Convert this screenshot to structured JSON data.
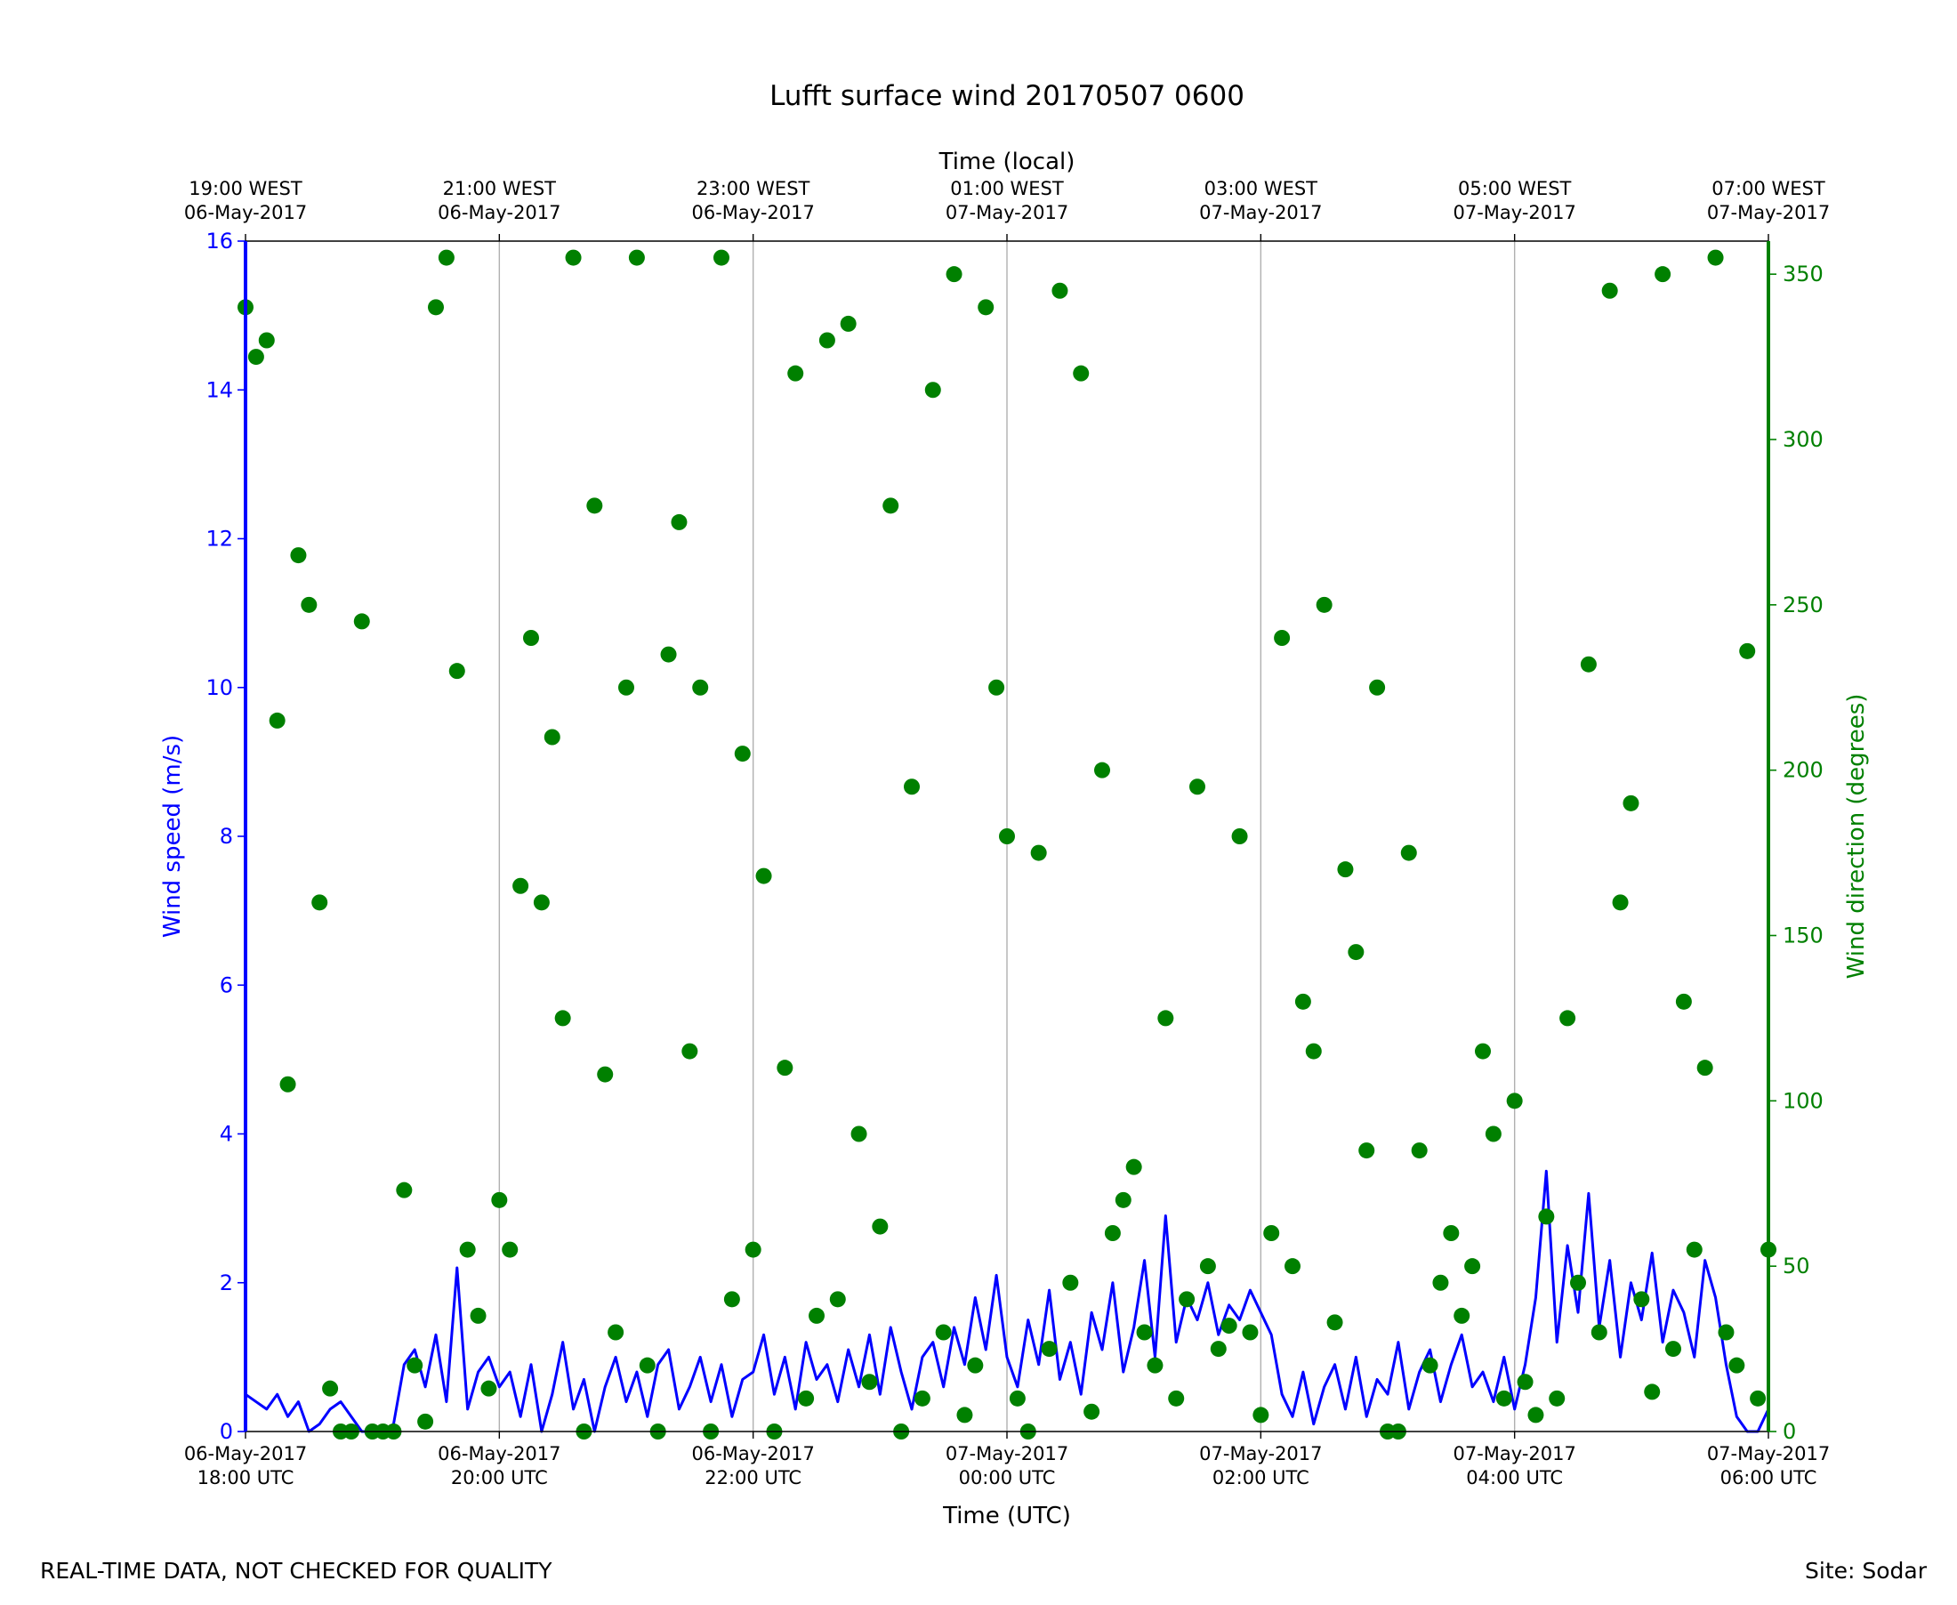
{
  "chart_data": {
    "type": "line",
    "title": "Lufft surface wind 20170507 0600",
    "xlabel": "Time (UTC)",
    "x2label": "Time (local)",
    "ylabel": "Wind speed (m/s)",
    "y2label": "Wind direction (degrees)",
    "footer_left": "REAL-TIME DATA, NOT CHECKED FOR QUALITY",
    "footer_right": "Site: Sodar",
    "grid": true,
    "xlim": [
      "2017-05-06T18:00Z",
      "2017-05-07T06:00Z"
    ],
    "xticks": [
      {
        "value": "2017-05-06T18:00Z",
        "label": [
          "06-May-2017",
          "18:00 UTC"
        ]
      },
      {
        "value": "2017-05-06T20:00Z",
        "label": [
          "06-May-2017",
          "20:00 UTC"
        ]
      },
      {
        "value": "2017-05-06T22:00Z",
        "label": [
          "06-May-2017",
          "22:00 UTC"
        ]
      },
      {
        "value": "2017-05-07T00:00Z",
        "label": [
          "07-May-2017",
          "00:00 UTC"
        ]
      },
      {
        "value": "2017-05-07T02:00Z",
        "label": [
          "07-May-2017",
          "02:00 UTC"
        ]
      },
      {
        "value": "2017-05-07T04:00Z",
        "label": [
          "07-May-2017",
          "04:00 UTC"
        ]
      },
      {
        "value": "2017-05-07T06:00Z",
        "label": [
          "07-May-2017",
          "06:00 UTC"
        ]
      }
    ],
    "x2ticks": [
      {
        "value": "2017-05-06T18:00Z",
        "label": [
          "19:00 WEST",
          "06-May-2017"
        ]
      },
      {
        "value": "2017-05-06T20:00Z",
        "label": [
          "21:00 WEST",
          "06-May-2017"
        ]
      },
      {
        "value": "2017-05-06T22:00Z",
        "label": [
          "23:00 WEST",
          "06-May-2017"
        ]
      },
      {
        "value": "2017-05-07T00:00Z",
        "label": [
          "01:00 WEST",
          "07-May-2017"
        ]
      },
      {
        "value": "2017-05-07T02:00Z",
        "label": [
          "03:00 WEST",
          "07-May-2017"
        ]
      },
      {
        "value": "2017-05-07T04:00Z",
        "label": [
          "05:00 WEST",
          "07-May-2017"
        ]
      },
      {
        "value": "2017-05-07T06:00Z",
        "label": [
          "07:00 WEST",
          "07-May-2017"
        ]
      }
    ],
    "ylim": [
      0,
      16
    ],
    "yticks": [
      0,
      2,
      4,
      6,
      8,
      10,
      12,
      14,
      16
    ],
    "ycolor": "#0000ff",
    "y2lim": [
      0,
      360
    ],
    "y2ticks": [
      0,
      50,
      100,
      150,
      200,
      250,
      300,
      350
    ],
    "y2color": "#008000",
    "x": [
      "2017-05-06T18:00Z",
      "2017-05-06T18:05Z",
      "2017-05-06T18:10Z",
      "2017-05-06T18:15Z",
      "2017-05-06T18:20Z",
      "2017-05-06T18:25Z",
      "2017-05-06T18:30Z",
      "2017-05-06T18:35Z",
      "2017-05-06T18:40Z",
      "2017-05-06T18:45Z",
      "2017-05-06T18:50Z",
      "2017-05-06T18:55Z",
      "2017-05-06T19:00Z",
      "2017-05-06T19:05Z",
      "2017-05-06T19:10Z",
      "2017-05-06T19:15Z",
      "2017-05-06T19:20Z",
      "2017-05-06T19:25Z",
      "2017-05-06T19:30Z",
      "2017-05-06T19:35Z",
      "2017-05-06T19:40Z",
      "2017-05-06T19:45Z",
      "2017-05-06T19:50Z",
      "2017-05-06T19:55Z",
      "2017-05-06T20:00Z",
      "2017-05-06T20:05Z",
      "2017-05-06T20:10Z",
      "2017-05-06T20:15Z",
      "2017-05-06T20:20Z",
      "2017-05-06T20:25Z",
      "2017-05-06T20:30Z",
      "2017-05-06T20:35Z",
      "2017-05-06T20:40Z",
      "2017-05-06T20:45Z",
      "2017-05-06T20:50Z",
      "2017-05-06T20:55Z",
      "2017-05-06T21:00Z",
      "2017-05-06T21:05Z",
      "2017-05-06T21:10Z",
      "2017-05-06T21:15Z",
      "2017-05-06T21:20Z",
      "2017-05-06T21:25Z",
      "2017-05-06T21:30Z",
      "2017-05-06T21:35Z",
      "2017-05-06T21:40Z",
      "2017-05-06T21:45Z",
      "2017-05-06T21:50Z",
      "2017-05-06T21:55Z",
      "2017-05-06T22:00Z",
      "2017-05-06T22:05Z",
      "2017-05-06T22:10Z",
      "2017-05-06T22:15Z",
      "2017-05-06T22:20Z",
      "2017-05-06T22:25Z",
      "2017-05-06T22:30Z",
      "2017-05-06T22:35Z",
      "2017-05-06T22:40Z",
      "2017-05-06T22:45Z",
      "2017-05-06T22:50Z",
      "2017-05-06T22:55Z",
      "2017-05-06T23:00Z",
      "2017-05-06T23:05Z",
      "2017-05-06T23:10Z",
      "2017-05-06T23:15Z",
      "2017-05-06T23:20Z",
      "2017-05-06T23:25Z",
      "2017-05-06T23:30Z",
      "2017-05-06T23:35Z",
      "2017-05-06T23:40Z",
      "2017-05-06T23:45Z",
      "2017-05-06T23:50Z",
      "2017-05-06T23:55Z",
      "2017-05-07T00:00Z",
      "2017-05-07T00:05Z",
      "2017-05-07T00:10Z",
      "2017-05-07T00:15Z",
      "2017-05-07T00:20Z",
      "2017-05-07T00:25Z",
      "2017-05-07T00:30Z",
      "2017-05-07T00:35Z",
      "2017-05-07T00:40Z",
      "2017-05-07T00:45Z",
      "2017-05-07T00:50Z",
      "2017-05-07T00:55Z",
      "2017-05-07T01:00Z",
      "2017-05-07T01:05Z",
      "2017-05-07T01:10Z",
      "2017-05-07T01:15Z",
      "2017-05-07T01:20Z",
      "2017-05-07T01:25Z",
      "2017-05-07T01:30Z",
      "2017-05-07T01:35Z",
      "2017-05-07T01:40Z",
      "2017-05-07T01:45Z",
      "2017-05-07T01:50Z",
      "2017-05-07T01:55Z",
      "2017-05-07T02:00Z",
      "2017-05-07T02:05Z",
      "2017-05-07T02:10Z",
      "2017-05-07T02:15Z",
      "2017-05-07T02:20Z",
      "2017-05-07T02:25Z",
      "2017-05-07T02:30Z",
      "2017-05-07T02:35Z",
      "2017-05-07T02:40Z",
      "2017-05-07T02:45Z",
      "2017-05-07T02:50Z",
      "2017-05-07T02:55Z",
      "2017-05-07T03:00Z",
      "2017-05-07T03:05Z",
      "2017-05-07T03:10Z",
      "2017-05-07T03:15Z",
      "2017-05-07T03:20Z",
      "2017-05-07T03:25Z",
      "2017-05-07T03:30Z",
      "2017-05-07T03:35Z",
      "2017-05-07T03:40Z",
      "2017-05-07T03:45Z",
      "2017-05-07T03:50Z",
      "2017-05-07T03:55Z",
      "2017-05-07T04:00Z",
      "2017-05-07T04:05Z",
      "2017-05-07T04:10Z",
      "2017-05-07T04:15Z",
      "2017-05-07T04:20Z",
      "2017-05-07T04:25Z",
      "2017-05-07T04:30Z",
      "2017-05-07T04:35Z",
      "2017-05-07T04:40Z",
      "2017-05-07T04:45Z",
      "2017-05-07T04:50Z",
      "2017-05-07T04:55Z",
      "2017-05-07T05:00Z",
      "2017-05-07T05:05Z",
      "2017-05-07T05:10Z",
      "2017-05-07T05:15Z",
      "2017-05-07T05:20Z",
      "2017-05-07T05:25Z",
      "2017-05-07T05:30Z",
      "2017-05-07T05:35Z",
      "2017-05-07T05:40Z",
      "2017-05-07T05:45Z",
      "2017-05-07T05:50Z",
      "2017-05-07T05:55Z",
      "2017-05-07T06:00Z"
    ],
    "series": [
      {
        "type": "line",
        "axis": "y",
        "color": "#0000ff",
        "values": [
          0.5,
          0.4,
          0.3,
          0.5,
          0.2,
          0.4,
          0,
          0.1,
          0.3,
          0.4,
          0.2,
          0,
          0,
          0,
          0.1,
          0.9,
          1.1,
          0.6,
          1.3,
          0.4,
          2.2,
          0.3,
          0.8,
          1.0,
          0.6,
          0.8,
          0.2,
          0.9,
          0,
          0.5,
          1.2,
          0.3,
          0.7,
          0,
          0.6,
          1.0,
          0.4,
          0.8,
          0.2,
          0.9,
          1.1,
          0.3,
          0.6,
          1.0,
          0.4,
          0.9,
          0.2,
          0.7,
          0.8,
          1.3,
          0.5,
          1.0,
          0.3,
          1.2,
          0.7,
          0.9,
          0.4,
          1.1,
          0.6,
          1.3,
          0.5,
          1.4,
          0.8,
          0.3,
          1.0,
          1.2,
          0.6,
          1.4,
          0.9,
          1.8,
          1.1,
          2.1,
          1.0,
          0.6,
          1.5,
          0.9,
          1.9,
          0.7,
          1.2,
          0.5,
          1.6,
          1.1,
          2.0,
          0.8,
          1.4,
          2.3,
          1.0,
          2.9,
          1.2,
          1.8,
          1.5,
          2.0,
          1.3,
          1.7,
          1.5,
          1.9,
          1.6,
          1.3,
          0.5,
          0.2,
          0.8,
          0.1,
          0.6,
          0.9,
          0.3,
          1.0,
          0.2,
          0.7,
          0.5,
          1.2,
          0.3,
          0.8,
          1.1,
          0.4,
          0.9,
          1.3,
          0.6,
          0.8,
          0.4,
          1.0,
          0.3,
          0.9,
          1.8,
          3.5,
          1.2,
          2.5,
          1.6,
          3.2,
          1.4,
          2.3,
          1.0,
          2.0,
          1.5,
          2.4,
          1.2,
          1.9,
          1.6,
          1.0,
          2.3,
          1.8,
          0.9,
          0.2,
          0,
          0,
          0.3
        ]
      },
      {
        "type": "scatter",
        "axis": "y2",
        "color": "#008000",
        "values": [
          340,
          325,
          330,
          215,
          105,
          265,
          250,
          160,
          13,
          0,
          0,
          245,
          0,
          0,
          0,
          73,
          20,
          3,
          340,
          355,
          230,
          55,
          35,
          13,
          70,
          55,
          165,
          240,
          160,
          210,
          125,
          355,
          0,
          280,
          108,
          30,
          225,
          355,
          20,
          0,
          235,
          275,
          115,
          225,
          0,
          355,
          40,
          205,
          55,
          168,
          0,
          110,
          320,
          10,
          35,
          330,
          40,
          335,
          90,
          15,
          62,
          280,
          0,
          195,
          10,
          315,
          30,
          350,
          5,
          20,
          340,
          225,
          180,
          10,
          0,
          175,
          25,
          345,
          45,
          320,
          6,
          200,
          60,
          70,
          80,
          30,
          20,
          125,
          10,
          40,
          195,
          50,
          25,
          32,
          180,
          30,
          5,
          60,
          240,
          50,
          130,
          115,
          250,
          33,
          170,
          145,
          85,
          225,
          0,
          0,
          175,
          85,
          20,
          45,
          60,
          35,
          50,
          115,
          90,
          10,
          100,
          15,
          5,
          65,
          10,
          125,
          45,
          232,
          30,
          345,
          160,
          190,
          40,
          12,
          350,
          25,
          130,
          55,
          110,
          355,
          30,
          20,
          236,
          10,
          55
        ]
      }
    ]
  }
}
